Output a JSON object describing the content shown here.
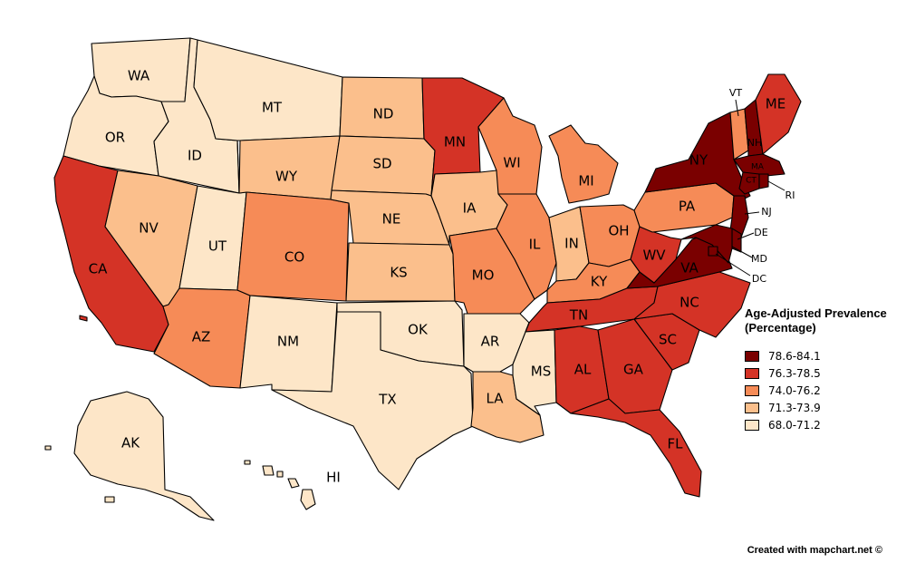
{
  "legend": {
    "title_line1": "Age-Adjusted Prevalence",
    "title_line2": "(Percentage)",
    "classes": [
      {
        "label": "78.6-84.1",
        "color": "#7a0000"
      },
      {
        "label": "76.3-78.5",
        "color": "#d43326"
      },
      {
        "label": "74.0-76.2",
        "color": "#f68b57"
      },
      {
        "label": "71.3-73.9",
        "color": "#fbbf8c"
      },
      {
        "label": "68.0-71.2",
        "color": "#fde6c8"
      }
    ]
  },
  "states": [
    {
      "abbr": "WA",
      "class": 4
    },
    {
      "abbr": "OR",
      "class": 4
    },
    {
      "abbr": "CA",
      "class": 1
    },
    {
      "abbr": "ID",
      "class": 4
    },
    {
      "abbr": "NV",
      "class": 3
    },
    {
      "abbr": "UT",
      "class": 4
    },
    {
      "abbr": "AZ",
      "class": 2
    },
    {
      "abbr": "MT",
      "class": 4
    },
    {
      "abbr": "WY",
      "class": 3
    },
    {
      "abbr": "CO",
      "class": 2
    },
    {
      "abbr": "NM",
      "class": 4
    },
    {
      "abbr": "ND",
      "class": 3
    },
    {
      "abbr": "SD",
      "class": 3
    },
    {
      "abbr": "NE",
      "class": 3
    },
    {
      "abbr": "KS",
      "class": 3
    },
    {
      "abbr": "OK",
      "class": 4
    },
    {
      "abbr": "TX",
      "class": 4
    },
    {
      "abbr": "MN",
      "class": 1
    },
    {
      "abbr": "IA",
      "class": 3
    },
    {
      "abbr": "MO",
      "class": 2
    },
    {
      "abbr": "AR",
      "class": 4
    },
    {
      "abbr": "LA",
      "class": 3
    },
    {
      "abbr": "WI",
      "class": 2
    },
    {
      "abbr": "IL",
      "class": 2
    },
    {
      "abbr": "MI",
      "class": 2
    },
    {
      "abbr": "IN",
      "class": 3
    },
    {
      "abbr": "OH",
      "class": 2
    },
    {
      "abbr": "KY",
      "class": 2
    },
    {
      "abbr": "TN",
      "class": 1
    },
    {
      "abbr": "MS",
      "class": 4
    },
    {
      "abbr": "AL",
      "class": 1
    },
    {
      "abbr": "GA",
      "class": 1
    },
    {
      "abbr": "FL",
      "class": 1
    },
    {
      "abbr": "SC",
      "class": 1
    },
    {
      "abbr": "NC",
      "class": 1
    },
    {
      "abbr": "VA",
      "class": 0
    },
    {
      "abbr": "WV",
      "class": 1
    },
    {
      "abbr": "PA",
      "class": 2
    },
    {
      "abbr": "NY",
      "class": 0
    },
    {
      "abbr": "VT",
      "class": 2
    },
    {
      "abbr": "NH",
      "class": 0
    },
    {
      "abbr": "ME",
      "class": 1
    },
    {
      "abbr": "MA",
      "class": 0
    },
    {
      "abbr": "CT",
      "class": 0
    },
    {
      "abbr": "RI",
      "class": 0
    },
    {
      "abbr": "NJ",
      "class": 0
    },
    {
      "abbr": "DE",
      "class": 0
    },
    {
      "abbr": "MD",
      "class": 0
    },
    {
      "abbr": "DC",
      "class": 0
    },
    {
      "abbr": "AK",
      "class": 4
    },
    {
      "abbr": "HI",
      "class": 4
    }
  ],
  "credit": "Created with mapchart.net ©"
}
